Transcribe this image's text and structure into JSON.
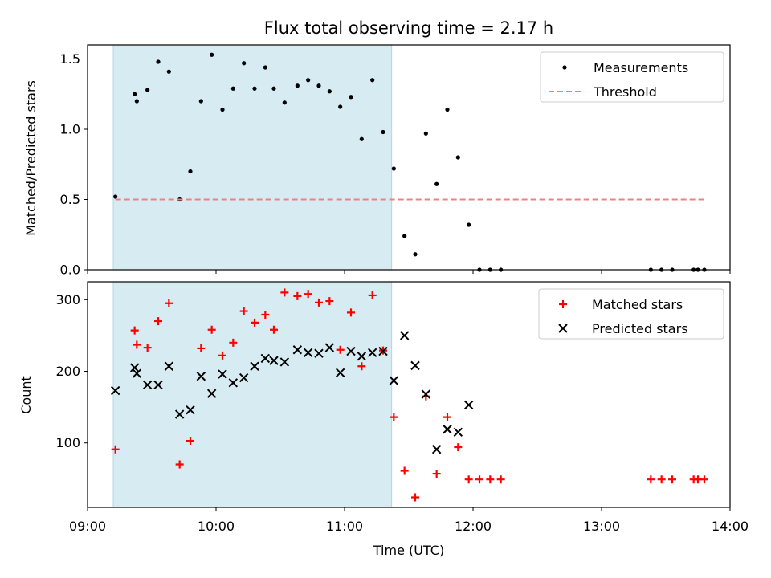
{
  "chart_data": [
    {
      "type": "scatter",
      "title": "Flux total observing time = 2.17 h",
      "xlabel": "",
      "ylabel": "Matched/Predicted stars",
      "xlim": [
        "09:00",
        "14:00"
      ],
      "ylim": [
        0,
        1.6
      ],
      "yticks": [
        0.0,
        0.5,
        1.0,
        1.5
      ],
      "ytick_labels": [
        "0.0",
        "0.5",
        "1.0",
        "1.5"
      ],
      "shaded_region": {
        "x": [
          "09:12",
          "11:22"
        ],
        "color": "#add8e6"
      },
      "legend": {
        "position": "top-right",
        "entries": [
          "Measurements",
          "Threshold"
        ]
      },
      "series": [
        {
          "name": "Measurements",
          "marker": "dot",
          "color": "#000000",
          "x": [
            "09:13",
            "09:22",
            "09:23",
            "09:28",
            "09:33",
            "09:38",
            "09:43",
            "09:48",
            "09:53",
            "09:58",
            "10:03",
            "10:08",
            "10:13",
            "10:18",
            "10:23",
            "10:27",
            "10:32",
            "10:38",
            "10:43",
            "10:48",
            "10:53",
            "10:58",
            "11:03",
            "11:08",
            "11:13",
            "11:18",
            "11:23",
            "11:28",
            "11:33",
            "11:38",
            "11:43",
            "11:48",
            "11:53",
            "11:58",
            "12:03",
            "12:08",
            "12:13",
            "13:23",
            "13:28",
            "13:33",
            "13:43",
            "13:45",
            "13:48"
          ],
          "y": [
            0.52,
            1.25,
            1.2,
            1.28,
            1.48,
            1.41,
            0.5,
            0.7,
            1.2,
            1.53,
            1.14,
            1.29,
            1.47,
            1.29,
            1.44,
            1.29,
            1.19,
            1.31,
            1.35,
            1.31,
            1.27,
            1.16,
            1.23,
            0.93,
            1.35,
            0.98,
            0.72,
            0.24,
            0.11,
            0.97,
            0.61,
            1.14,
            0.8,
            0.32,
            0.0,
            0.0,
            0.0,
            0.0,
            0.0,
            0.0,
            0.0,
            0.0,
            0.0
          ]
        },
        {
          "name": "Threshold",
          "style": "dashed",
          "color": "#f08080",
          "x": [
            "09:13",
            "13:48"
          ],
          "y": [
            0.5,
            0.5
          ]
        }
      ]
    },
    {
      "type": "scatter",
      "title": "",
      "xlabel": "Time (UTC)",
      "ylabel": "Count",
      "xlim": [
        "09:00",
        "14:00"
      ],
      "ylim": [
        10,
        325
      ],
      "yticks": [
        100,
        200,
        300
      ],
      "ytick_labels": [
        "100",
        "200",
        "300"
      ],
      "xtick_labels": [
        "09:00",
        "10:00",
        "11:00",
        "12:00",
        "13:00",
        "14:00"
      ],
      "shaded_region": {
        "x": [
          "09:12",
          "11:22"
        ],
        "color": "#add8e6"
      },
      "legend": {
        "position": "top-right",
        "entries": [
          "Matched stars",
          "Predicted stars"
        ]
      },
      "series": [
        {
          "name": "Matched stars",
          "marker": "plus",
          "color": "#ff0000",
          "x": [
            "09:13",
            "09:22",
            "09:23",
            "09:28",
            "09:33",
            "09:38",
            "09:43",
            "09:48",
            "09:53",
            "09:58",
            "10:03",
            "10:08",
            "10:13",
            "10:18",
            "10:23",
            "10:27",
            "10:32",
            "10:38",
            "10:43",
            "10:48",
            "10:53",
            "10:58",
            "11:03",
            "11:08",
            "11:13",
            "11:18",
            "11:23",
            "11:28",
            "11:33",
            "11:38",
            "11:43",
            "11:48",
            "11:53",
            "11:58",
            "12:03",
            "12:08",
            "12:13",
            "13:23",
            "13:28",
            "13:33",
            "13:43",
            "13:45",
            "13:48"
          ],
          "y": [
            91,
            257,
            237,
            233,
            270,
            295,
            70,
            103,
            232,
            258,
            222,
            240,
            284,
            268,
            279,
            258,
            310,
            305,
            308,
            296,
            298,
            230,
            282,
            207,
            306,
            229,
            136,
            61,
            24,
            165,
            57,
            136,
            94,
            49,
            49,
            49,
            49,
            49,
            49,
            49,
            49,
            49,
            49
          ]
        },
        {
          "name": "Predicted stars",
          "marker": "x",
          "color": "#000000",
          "x": [
            "09:13",
            "09:22",
            "09:23",
            "09:28",
            "09:33",
            "09:38",
            "09:43",
            "09:48",
            "09:53",
            "09:58",
            "10:03",
            "10:08",
            "10:13",
            "10:18",
            "10:23",
            "10:27",
            "10:32",
            "10:38",
            "10:43",
            "10:48",
            "10:53",
            "10:58",
            "11:03",
            "11:08",
            "11:13",
            "11:18",
            "11:23",
            "11:28",
            "11:33",
            "11:38",
            "11:43",
            "11:48",
            "11:53",
            "11:58"
          ],
          "y": [
            173,
            205,
            197,
            181,
            181,
            207,
            140,
            146,
            193,
            169,
            196,
            184,
            191,
            207,
            218,
            215,
            213,
            230,
            226,
            225,
            233,
            198,
            228,
            221,
            226,
            228,
            187,
            250,
            208,
            168,
            91,
            119,
            115,
            153
          ]
        }
      ]
    }
  ]
}
